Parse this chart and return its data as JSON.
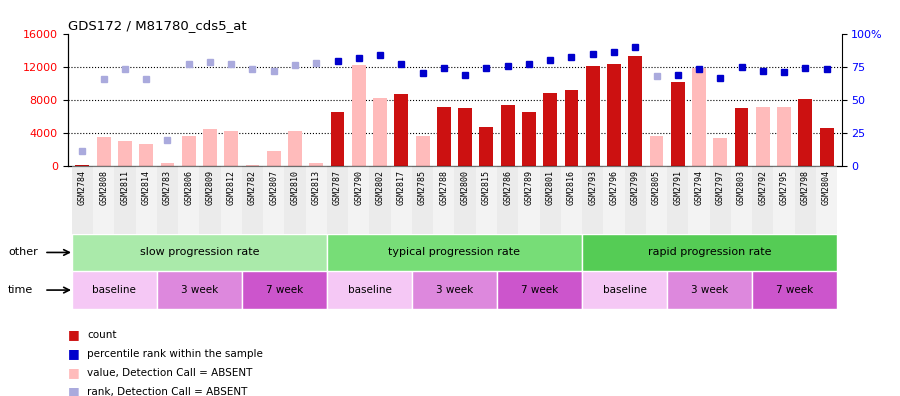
{
  "title": "GDS172 / M81780_cds5_at",
  "samples": [
    "GSM2784",
    "GSM2808",
    "GSM2811",
    "GSM2814",
    "GSM2783",
    "GSM2806",
    "GSM2809",
    "GSM2812",
    "GSM2782",
    "GSM2807",
    "GSM2810",
    "GSM2813",
    "GSM2787",
    "GSM2790",
    "GSM2802",
    "GSM2817",
    "GSM2785",
    "GSM2788",
    "GSM2800",
    "GSM2815",
    "GSM2786",
    "GSM2789",
    "GSM2801",
    "GSM2816",
    "GSM2793",
    "GSM2796",
    "GSM2799",
    "GSM2805",
    "GSM2791",
    "GSM2794",
    "GSM2797",
    "GSM2803",
    "GSM2792",
    "GSM2795",
    "GSM2798",
    "GSM2804"
  ],
  "bar_values": [
    100,
    3500,
    3000,
    2700,
    400,
    3700,
    4500,
    4200,
    200,
    1800,
    4200,
    400,
    6500,
    12200,
    8300,
    8700,
    3600,
    7200,
    7000,
    4700,
    7400,
    6600,
    8800,
    9200,
    12100,
    12300,
    13300,
    3700,
    10200,
    11900,
    3400,
    7000,
    7200,
    7200,
    8100,
    4600
  ],
  "bar_absent": [
    false,
    true,
    true,
    true,
    true,
    true,
    true,
    true,
    true,
    true,
    true,
    true,
    false,
    true,
    true,
    false,
    true,
    false,
    false,
    false,
    false,
    false,
    false,
    false,
    false,
    false,
    false,
    true,
    false,
    true,
    true,
    false,
    true,
    true,
    false,
    false
  ],
  "rank_values": [
    1900,
    10500,
    11700,
    10500,
    3200,
    12300,
    12600,
    12300,
    11700,
    11500,
    12200,
    12500,
    12700,
    13100,
    13400,
    12300,
    11200,
    11800,
    11000,
    11800,
    12100,
    12300,
    12800,
    13200,
    13600,
    13800,
    14400,
    10900,
    11000,
    11700,
    10700,
    12000,
    11500,
    11400,
    11900,
    11700
  ],
  "rank_absent": [
    true,
    true,
    true,
    true,
    true,
    true,
    true,
    true,
    true,
    true,
    true,
    true,
    false,
    false,
    false,
    false,
    false,
    false,
    false,
    false,
    false,
    false,
    false,
    false,
    false,
    false,
    false,
    true,
    false,
    false,
    false,
    false,
    false,
    false,
    false,
    false
  ],
  "progression_groups": [
    {
      "label": "slow progression rate",
      "start": 0,
      "end": 12,
      "color": "#aaeaaa"
    },
    {
      "label": "typical progression rate",
      "start": 12,
      "end": 24,
      "color": "#77dd77"
    },
    {
      "label": "rapid progression rate",
      "start": 24,
      "end": 36,
      "color": "#55cc55"
    }
  ],
  "time_groups": [
    {
      "label": "baseline",
      "start": 0,
      "end": 4,
      "color": "#f5c8f5"
    },
    {
      "label": "3 week",
      "start": 4,
      "end": 8,
      "color": "#dd88dd"
    },
    {
      "label": "7 week",
      "start": 8,
      "end": 12,
      "color": "#cc55cc"
    },
    {
      "label": "baseline",
      "start": 12,
      "end": 16,
      "color": "#f5c8f5"
    },
    {
      "label": "3 week",
      "start": 16,
      "end": 20,
      "color": "#dd88dd"
    },
    {
      "label": "7 week",
      "start": 20,
      "end": 24,
      "color": "#cc55cc"
    },
    {
      "label": "baseline",
      "start": 24,
      "end": 28,
      "color": "#f5c8f5"
    },
    {
      "label": "3 week",
      "start": 28,
      "end": 32,
      "color": "#dd88dd"
    },
    {
      "label": "7 week",
      "start": 32,
      "end": 36,
      "color": "#cc55cc"
    }
  ],
  "ylim_left": [
    0,
    16000
  ],
  "ylim_right": [
    0,
    100
  ],
  "yticks_left": [
    0,
    4000,
    8000,
    12000,
    16000
  ],
  "yticks_right": [
    0,
    25,
    50,
    75,
    100
  ],
  "bar_color_present": "#cc1111",
  "bar_color_absent": "#ffbbbb",
  "rank_color_present": "#0000cc",
  "rank_color_absent": "#aaaadd",
  "other_label": "other",
  "time_label": "time"
}
